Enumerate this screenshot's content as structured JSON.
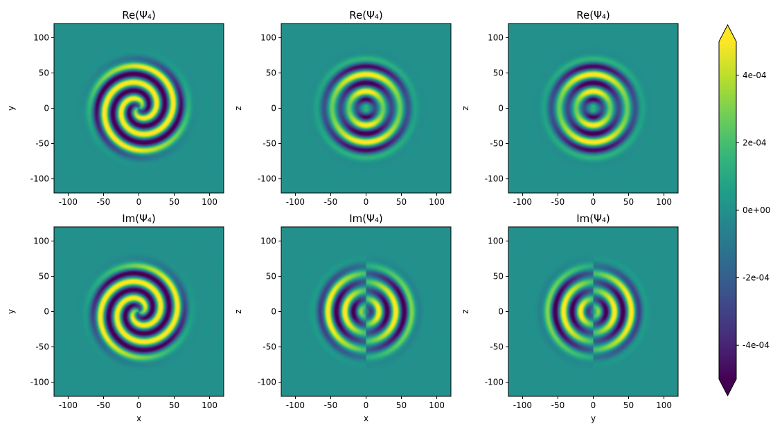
{
  "colors": {
    "colormap": [
      "#440154",
      "#482878",
      "#3e4989",
      "#31688e",
      "#26828e",
      "#1f9e89",
      "#35b779",
      "#6ece58",
      "#b5de2b",
      "#fde725"
    ],
    "background": "#ffffff",
    "axes_edge": "#000000"
  },
  "chart_data": [
    {
      "type": "heatmap",
      "title": "Re(Ψ₄)",
      "xlabel": "",
      "ylabel": "y",
      "plane": "xy",
      "component": "real",
      "xlim": [
        -120,
        120
      ],
      "ylim": [
        -120,
        120
      ],
      "xticks": [
        -100,
        -50,
        0,
        50,
        100
      ],
      "yticks": [
        -100,
        -50,
        0,
        50,
        100
      ],
      "pattern": "two-armed spiral",
      "extent_radius": 80
    },
    {
      "type": "heatmap",
      "title": "Re(Ψ₄)",
      "xlabel": "",
      "ylabel": "z",
      "plane": "xz",
      "component": "real",
      "xlim": [
        -120,
        120
      ],
      "ylim": [
        -120,
        120
      ],
      "xticks": [
        -100,
        -50,
        0,
        50,
        100
      ],
      "yticks": [
        -100,
        -50,
        0,
        50,
        100
      ],
      "pattern": "concentric rings",
      "extent_radius": 80
    },
    {
      "type": "heatmap",
      "title": "Re(Ψ₄)",
      "xlabel": "",
      "ylabel": "z",
      "plane": "yz",
      "component": "real",
      "xlim": [
        -120,
        120
      ],
      "ylim": [
        -120,
        120
      ],
      "xticks": [
        -100,
        -50,
        0,
        50,
        100
      ],
      "yticks": [
        -100,
        -50,
        0,
        50,
        100
      ],
      "pattern": "concentric rings",
      "extent_radius": 80
    },
    {
      "type": "heatmap",
      "title": "Im(Ψ₄)",
      "xlabel": "x",
      "ylabel": "y",
      "plane": "xy",
      "component": "imaginary",
      "xlim": [
        -120,
        120
      ],
      "ylim": [
        -120,
        120
      ],
      "xticks": [
        -100,
        -50,
        0,
        50,
        100
      ],
      "yticks": [
        -100,
        -50,
        0,
        50,
        100
      ],
      "pattern": "two-armed spiral",
      "extent_radius": 80
    },
    {
      "type": "heatmap",
      "title": "Im(Ψ₄)",
      "xlabel": "x",
      "ylabel": "z",
      "plane": "xz",
      "component": "imaginary",
      "xlim": [
        -120,
        120
      ],
      "ylim": [
        -120,
        120
      ],
      "xticks": [
        -100,
        -50,
        0,
        50,
        100
      ],
      "yticks": [
        -100,
        -50,
        0,
        50,
        100
      ],
      "pattern": "rings with left/right lobes",
      "extent_radius": 80
    },
    {
      "type": "heatmap",
      "title": "Im(Ψ₄)",
      "xlabel": "y",
      "ylabel": "z",
      "plane": "yz",
      "component": "imaginary",
      "xlim": [
        -120,
        120
      ],
      "ylim": [
        -120,
        120
      ],
      "xticks": [
        -100,
        -50,
        0,
        50,
        100
      ],
      "yticks": [
        -100,
        -50,
        0,
        50,
        100
      ],
      "pattern": "rings with left/right lobes (opposite sign)",
      "extent_radius": 80
    }
  ],
  "colorbar": {
    "vmin": -0.0005,
    "vmax": 0.0005,
    "extend": "both",
    "ticks": [
      -0.0004,
      -0.0002,
      0,
      0.0002,
      0.0004
    ],
    "ticklabels": [
      "-4e-04",
      "-2e-04",
      "0e+00",
      "2e-04",
      "4e-04"
    ]
  }
}
